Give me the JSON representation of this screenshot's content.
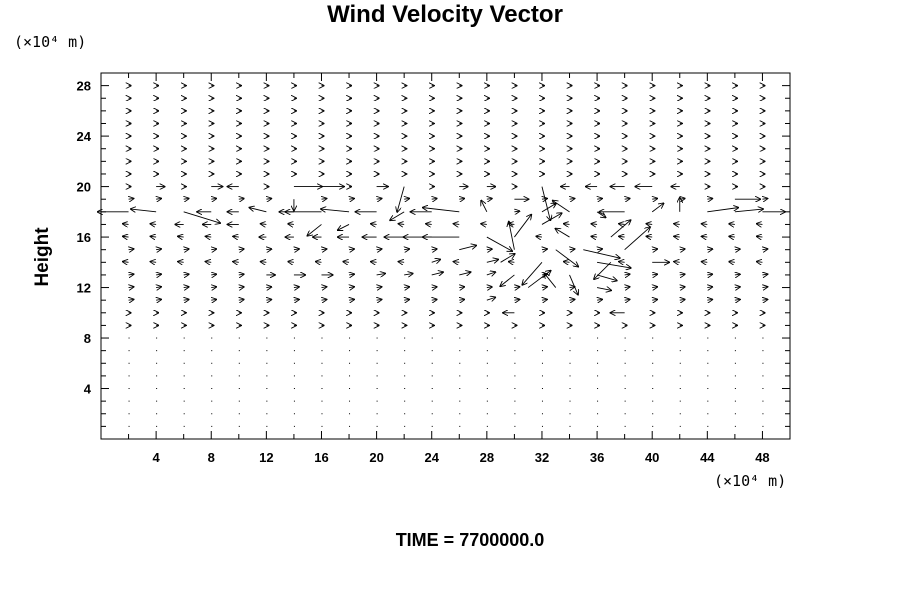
{
  "chart_data": {
    "type": "vector-field",
    "title": "Wind Velocity Vector",
    "ylabel": "Height",
    "xunit": "(×10⁴ m)",
    "yunit": "(×10⁴ m)",
    "footer": "TIME = 7700000.0",
    "xlim": [
      0,
      50
    ],
    "ylim": [
      0,
      29
    ],
    "xticks": [
      4,
      8,
      12,
      16,
      20,
      24,
      28,
      32,
      36,
      40,
      44,
      48
    ],
    "yticks": [
      4,
      8,
      12,
      16,
      20,
      24,
      28
    ],
    "grid_x_spacing": 2,
    "grid_y_spacing": 1,
    "grid_x_start": 2,
    "grid_y_start": 1,
    "vectors": [
      {
        "x": 2,
        "y": 18,
        "u": -2.2,
        "v": 0
      },
      {
        "x": 4,
        "y": 18,
        "u": -1.8,
        "v": 0.2
      },
      {
        "x": 6,
        "y": 18,
        "u": 2.6,
        "v": -0.8
      },
      {
        "x": 8,
        "y": 18,
        "u": -1.0,
        "v": 0
      },
      {
        "x": 10,
        "y": 18,
        "u": -0.8,
        "v": 0
      },
      {
        "x": 12,
        "y": 18,
        "u": -1.2,
        "v": 0.3
      },
      {
        "x": 14,
        "y": 18,
        "u": -0.6,
        "v": 0
      },
      {
        "x": 16,
        "y": 18,
        "u": -3.0,
        "v": 0
      },
      {
        "x": 18,
        "y": 18,
        "u": -2.0,
        "v": 0.2
      },
      {
        "x": 20,
        "y": 18,
        "u": -1.5,
        "v": 0
      },
      {
        "x": 22,
        "y": 18,
        "u": -1.0,
        "v": -0.6
      },
      {
        "x": 24,
        "y": 18,
        "u": -1.5,
        "v": 0
      },
      {
        "x": 26,
        "y": 18,
        "u": -2.6,
        "v": 0.3
      },
      {
        "x": 28,
        "y": 18,
        "u": -0.4,
        "v": 0.8
      },
      {
        "x": 32,
        "y": 18,
        "u": 1.0,
        "v": 0.6
      },
      {
        "x": 34,
        "y": 18,
        "u": -1.2,
        "v": 0.8
      },
      {
        "x": 36,
        "y": 18,
        "u": 0.6,
        "v": -0.4
      },
      {
        "x": 38,
        "y": 18,
        "u": -1.8,
        "v": 0
      },
      {
        "x": 40,
        "y": 18,
        "u": 0.8,
        "v": 0.6
      },
      {
        "x": 42,
        "y": 18,
        "u": 0.0,
        "v": 1.0
      },
      {
        "x": 44,
        "y": 18,
        "u": 2.2,
        "v": 0.3
      },
      {
        "x": 46,
        "y": 18,
        "u": 2.0,
        "v": 0.2
      },
      {
        "x": 48,
        "y": 18,
        "u": 1.6,
        "v": 0
      },
      {
        "x": 4,
        "y": 20,
        "u": 0.6,
        "v": 0
      },
      {
        "x": 8,
        "y": 20,
        "u": 0.8,
        "v": 0
      },
      {
        "x": 10,
        "y": 20,
        "u": -0.8,
        "v": 0
      },
      {
        "x": 14,
        "y": 20,
        "u": 2.0,
        "v": 0
      },
      {
        "x": 16,
        "y": 20,
        "u": 1.6,
        "v": 0
      },
      {
        "x": 20,
        "y": 20,
        "u": 0.8,
        "v": 0
      },
      {
        "x": 22,
        "y": 20,
        "u": -0.5,
        "v": -1.8
      },
      {
        "x": 26,
        "y": 20,
        "u": 0.6,
        "v": 0
      },
      {
        "x": 28,
        "y": 20,
        "u": 0.6,
        "v": 0
      },
      {
        "x": 30,
        "y": 19,
        "u": 1.0,
        "v": 0
      },
      {
        "x": 32,
        "y": 20,
        "u": 0.6,
        "v": -2.4
      },
      {
        "x": 34,
        "y": 20,
        "u": -0.6,
        "v": 0
      },
      {
        "x": 36,
        "y": 20,
        "u": -0.8,
        "v": 0
      },
      {
        "x": 38,
        "y": 20,
        "u": -1.0,
        "v": 0
      },
      {
        "x": 40,
        "y": 20,
        "u": -1.2,
        "v": 0
      },
      {
        "x": 42,
        "y": 20,
        "u": -0.6,
        "v": 0
      },
      {
        "x": 46,
        "y": 19,
        "u": 1.8,
        "v": 0
      },
      {
        "x": 28,
        "y": 16,
        "u": 1.8,
        "v": -1.0
      },
      {
        "x": 30,
        "y": 16,
        "u": 1.2,
        "v": 1.6
      },
      {
        "x": 32,
        "y": 17,
        "u": 1.4,
        "v": 0.8
      },
      {
        "x": 30,
        "y": 15,
        "u": -0.4,
        "v": 2.0
      },
      {
        "x": 33,
        "y": 15,
        "u": 1.6,
        "v": -1.2
      },
      {
        "x": 35,
        "y": 15,
        "u": 2.6,
        "v": -0.6
      },
      {
        "x": 37,
        "y": 16,
        "u": 1.4,
        "v": 1.2
      },
      {
        "x": 38,
        "y": 15,
        "u": 1.8,
        "v": 1.6
      },
      {
        "x": 40,
        "y": 14,
        "u": 1.2,
        "v": 0
      },
      {
        "x": 32,
        "y": 14,
        "u": -1.4,
        "v": -1.6
      },
      {
        "x": 34,
        "y": 13,
        "u": 0.6,
        "v": -1.4
      },
      {
        "x": 36,
        "y": 13,
        "u": 1.4,
        "v": -0.4
      },
      {
        "x": 37,
        "y": 14,
        "u": -1.2,
        "v": -1.2
      },
      {
        "x": 36,
        "y": 14,
        "u": 2.4,
        "v": -0.4
      },
      {
        "x": 30,
        "y": 13,
        "u": -1.0,
        "v": -0.8
      },
      {
        "x": 31,
        "y": 12,
        "u": 1.6,
        "v": 1.2
      },
      {
        "x": 33,
        "y": 12,
        "u": -0.8,
        "v": 1.0
      },
      {
        "x": 29,
        "y": 14,
        "u": 1.0,
        "v": 0.6
      },
      {
        "x": 26,
        "y": 16,
        "u": -2.6,
        "v": 0
      },
      {
        "x": 24,
        "y": 16,
        "u": -2.0,
        "v": 0
      },
      {
        "x": 22,
        "y": 16,
        "u": -1.4,
        "v": 0
      },
      {
        "x": 20,
        "y": 16,
        "u": -1.0,
        "v": 0
      },
      {
        "x": 18,
        "y": 16,
        "u": -0.8,
        "v": 0
      },
      {
        "x": 16,
        "y": 16,
        "u": -0.6,
        "v": 0
      },
      {
        "x": 14,
        "y": 16,
        "u": -0.6,
        "v": 0
      },
      {
        "x": 12,
        "y": 16,
        "u": -0.5,
        "v": 0
      },
      {
        "x": 26,
        "y": 15,
        "u": 1.2,
        "v": 0.3
      },
      {
        "x": 28,
        "y": 14,
        "u": 0.8,
        "v": 0.2
      },
      {
        "x": 28,
        "y": 13,
        "u": 0.6,
        "v": 0.2
      },
      {
        "x": 26,
        "y": 13,
        "u": 0.8,
        "v": 0.2
      },
      {
        "x": 24,
        "y": 14,
        "u": 0.6,
        "v": 0.2
      },
      {
        "x": 24,
        "y": 13,
        "u": 0.8,
        "v": 0.2
      },
      {
        "x": 22,
        "y": 13,
        "u": 0.6,
        "v": 0.1
      },
      {
        "x": 20,
        "y": 13,
        "u": 0.6,
        "v": 0.1
      },
      {
        "x": 28,
        "y": 11,
        "u": 0.6,
        "v": 0.2
      },
      {
        "x": 30,
        "y": 10,
        "u": -0.8,
        "v": 0
      },
      {
        "x": 38,
        "y": 10,
        "u": -1.0,
        "v": 0
      },
      {
        "x": 36,
        "y": 12,
        "u": 1.0,
        "v": -0.2
      },
      {
        "x": 34,
        "y": 16,
        "u": -1.0,
        "v": 0.6
      },
      {
        "x": 14,
        "y": 19,
        "u": 0,
        "v": -0.8
      },
      {
        "x": 10,
        "y": 17,
        "u": -0.8,
        "v": 0
      },
      {
        "x": 8,
        "y": 17,
        "u": -0.6,
        "v": 0
      },
      {
        "x": 6,
        "y": 17,
        "u": -0.6,
        "v": 0
      },
      {
        "x": 12,
        "y": 13,
        "u": 0.6,
        "v": 0
      },
      {
        "x": 14,
        "y": 13,
        "u": 0.8,
        "v": 0
      },
      {
        "x": 16,
        "y": 13,
        "u": 0.8,
        "v": 0
      },
      {
        "x": 16,
        "y": 17,
        "u": -1.0,
        "v": -0.8
      },
      {
        "x": 18,
        "y": 17,
        "u": -0.8,
        "v": -0.4
      }
    ]
  }
}
